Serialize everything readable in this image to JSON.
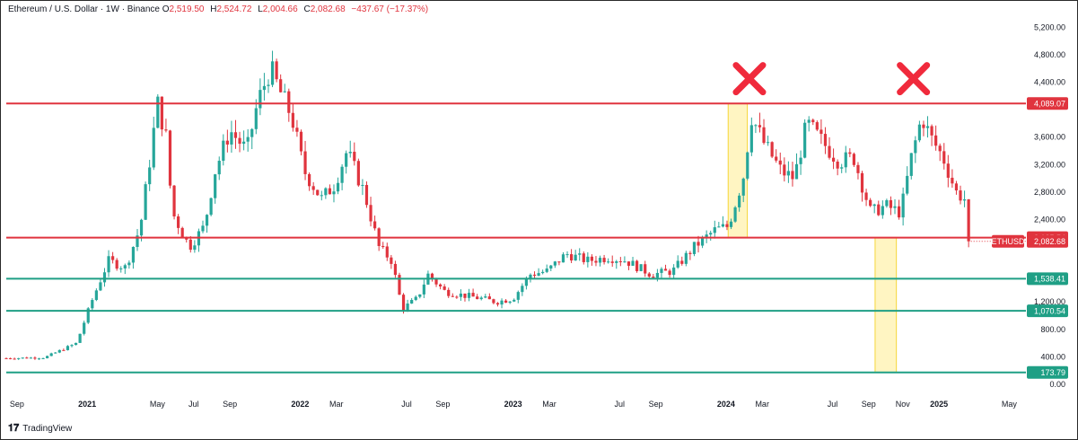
{
  "header": {
    "symbol": "Ethereum / U.S. Dollar · 1W · Binance",
    "open_label": "O",
    "open": "2,519.50",
    "high_label": "H",
    "high": "2,524.72",
    "low_label": "L",
    "low": "2,004.66",
    "close_label": "C",
    "close": "2,082.68",
    "change": "−437.67 (−17.37%)"
  },
  "footer": {
    "brand": "TradingView"
  },
  "colors": {
    "up": "#26a69a",
    "down": "#e0343e",
    "resistance": "#e0343e",
    "support": "#1f9f85",
    "highlight": "#fff5c2",
    "highlight_border": "#f5d63a"
  },
  "chart_data": {
    "type": "candlestick",
    "x_ticks": [
      {
        "label": "Sep",
        "t": 2020.67
      },
      {
        "label": "2021",
        "t": 2021.0,
        "bold": true
      },
      {
        "label": "May",
        "t": 2021.33
      },
      {
        "label": "Jul",
        "t": 2021.5
      },
      {
        "label": "Sep",
        "t": 2021.67
      },
      {
        "label": "2022",
        "t": 2022.0,
        "bold": true
      },
      {
        "label": "Mar",
        "t": 2022.17
      },
      {
        "label": "Jul",
        "t": 2022.5
      },
      {
        "label": "Sep",
        "t": 2022.67
      },
      {
        "label": "2023",
        "t": 2023.0,
        "bold": true
      },
      {
        "label": "Mar",
        "t": 2023.17
      },
      {
        "label": "Jul",
        "t": 2023.5
      },
      {
        "label": "Sep",
        "t": 2023.67
      },
      {
        "label": "2024",
        "t": 2024.0,
        "bold": true
      },
      {
        "label": "Mar",
        "t": 2024.17
      },
      {
        "label": "Jul",
        "t": 2024.5
      },
      {
        "label": "Sep",
        "t": 2024.67
      },
      {
        "label": "Nov",
        "t": 2024.83
      },
      {
        "label": "2025",
        "t": 2025.0,
        "bold": true
      },
      {
        "label": "May",
        "t": 2025.33
      }
    ],
    "y_ticks": [
      "5,200.00",
      "4,800.00",
      "4,400.00",
      "3,600.00",
      "3,200.00",
      "2,800.00",
      "2,400.00",
      "1,200.00",
      "800.00",
      "400.00",
      "0.00"
    ],
    "y_tick_values": [
      5200,
      4800,
      4400,
      3600,
      3200,
      2800,
      2400,
      1200,
      800,
      400,
      0
    ],
    "ylim": [
      0,
      5400
    ],
    "horizontal_levels": [
      {
        "label": "4,089.07",
        "value": 4089.07,
        "kind": "resistance"
      },
      {
        "label": "2,135.54",
        "value": 2135.54,
        "kind": "resistance"
      },
      {
        "label": "1,538.41",
        "value": 1538.41,
        "kind": "support"
      },
      {
        "label": "1,070.54",
        "value": 1070.54,
        "kind": "support"
      },
      {
        "label": "173.79",
        "value": 173.79,
        "kind": "support"
      }
    ],
    "current_price": {
      "symbol": "ETHUSD",
      "label": "2,082.68",
      "value": 2082.68
    },
    "highlight_boxes": [
      {
        "t_start": 2024.01,
        "t_end": 2024.1,
        "low": 2135.54,
        "high": 4089.07
      },
      {
        "t_start": 2024.7,
        "t_end": 2024.8,
        "low": 173.79,
        "high": 2135.54
      }
    ],
    "x_markers": [
      {
        "t": 2024.11,
        "value": 4450
      },
      {
        "t": 2024.88,
        "value": 4450
      }
    ],
    "anchors": [
      [
        2020.62,
        380
      ],
      [
        2020.8,
        390
      ],
      [
        2020.95,
        600
      ],
      [
        2021.02,
        1200
      ],
      [
        2021.1,
        1800
      ],
      [
        2021.18,
        1700
      ],
      [
        2021.25,
        2300
      ],
      [
        2021.3,
        3400
      ],
      [
        2021.33,
        4100
      ],
      [
        2021.37,
        3600
      ],
      [
        2021.4,
        2500
      ],
      [
        2021.48,
        2000
      ],
      [
        2021.55,
        2300
      ],
      [
        2021.6,
        3100
      ],
      [
        2021.67,
        3700
      ],
      [
        2021.75,
        3400
      ],
      [
        2021.8,
        4100
      ],
      [
        2021.86,
        4600
      ],
      [
        2021.9,
        4300
      ],
      [
        2021.96,
        3900
      ],
      [
        2022.02,
        3100
      ],
      [
        2022.1,
        2700
      ],
      [
        2022.16,
        2900
      ],
      [
        2022.22,
        3400
      ],
      [
        2022.3,
        2800
      ],
      [
        2022.37,
        2000
      ],
      [
        2022.43,
        1800
      ],
      [
        2022.48,
        1100
      ],
      [
        2022.55,
        1250
      ],
      [
        2022.6,
        1600
      ],
      [
        2022.68,
        1350
      ],
      [
        2022.76,
        1300
      ],
      [
        2022.85,
        1250
      ],
      [
        2022.92,
        1200
      ],
      [
        2023.0,
        1250
      ],
      [
        2023.08,
        1600
      ],
      [
        2023.16,
        1650
      ],
      [
        2023.25,
        1900
      ],
      [
        2023.35,
        1800
      ],
      [
        2023.45,
        1850
      ],
      [
        2023.53,
        1800
      ],
      [
        2023.65,
        1600
      ],
      [
        2023.75,
        1650
      ],
      [
        2023.85,
        2000
      ],
      [
        2023.95,
        2250
      ],
      [
        2024.01,
        2300
      ],
      [
        2024.08,
        3000
      ],
      [
        2024.12,
        3900
      ],
      [
        2024.18,
        3500
      ],
      [
        2024.26,
        3100
      ],
      [
        2024.32,
        3000
      ],
      [
        2024.38,
        3800
      ],
      [
        2024.46,
        3500
      ],
      [
        2024.53,
        3250
      ],
      [
        2024.6,
        3300
      ],
      [
        2024.68,
        2500
      ],
      [
        2024.75,
        2600
      ],
      [
        2024.82,
        2500
      ],
      [
        2024.87,
        3300
      ],
      [
        2024.92,
        3900
      ],
      [
        2024.96,
        3600
      ],
      [
        2025.02,
        3300
      ],
      [
        2025.08,
        2800
      ],
      [
        2025.12,
        2700
      ],
      [
        2025.15,
        2082.68
      ]
    ]
  }
}
